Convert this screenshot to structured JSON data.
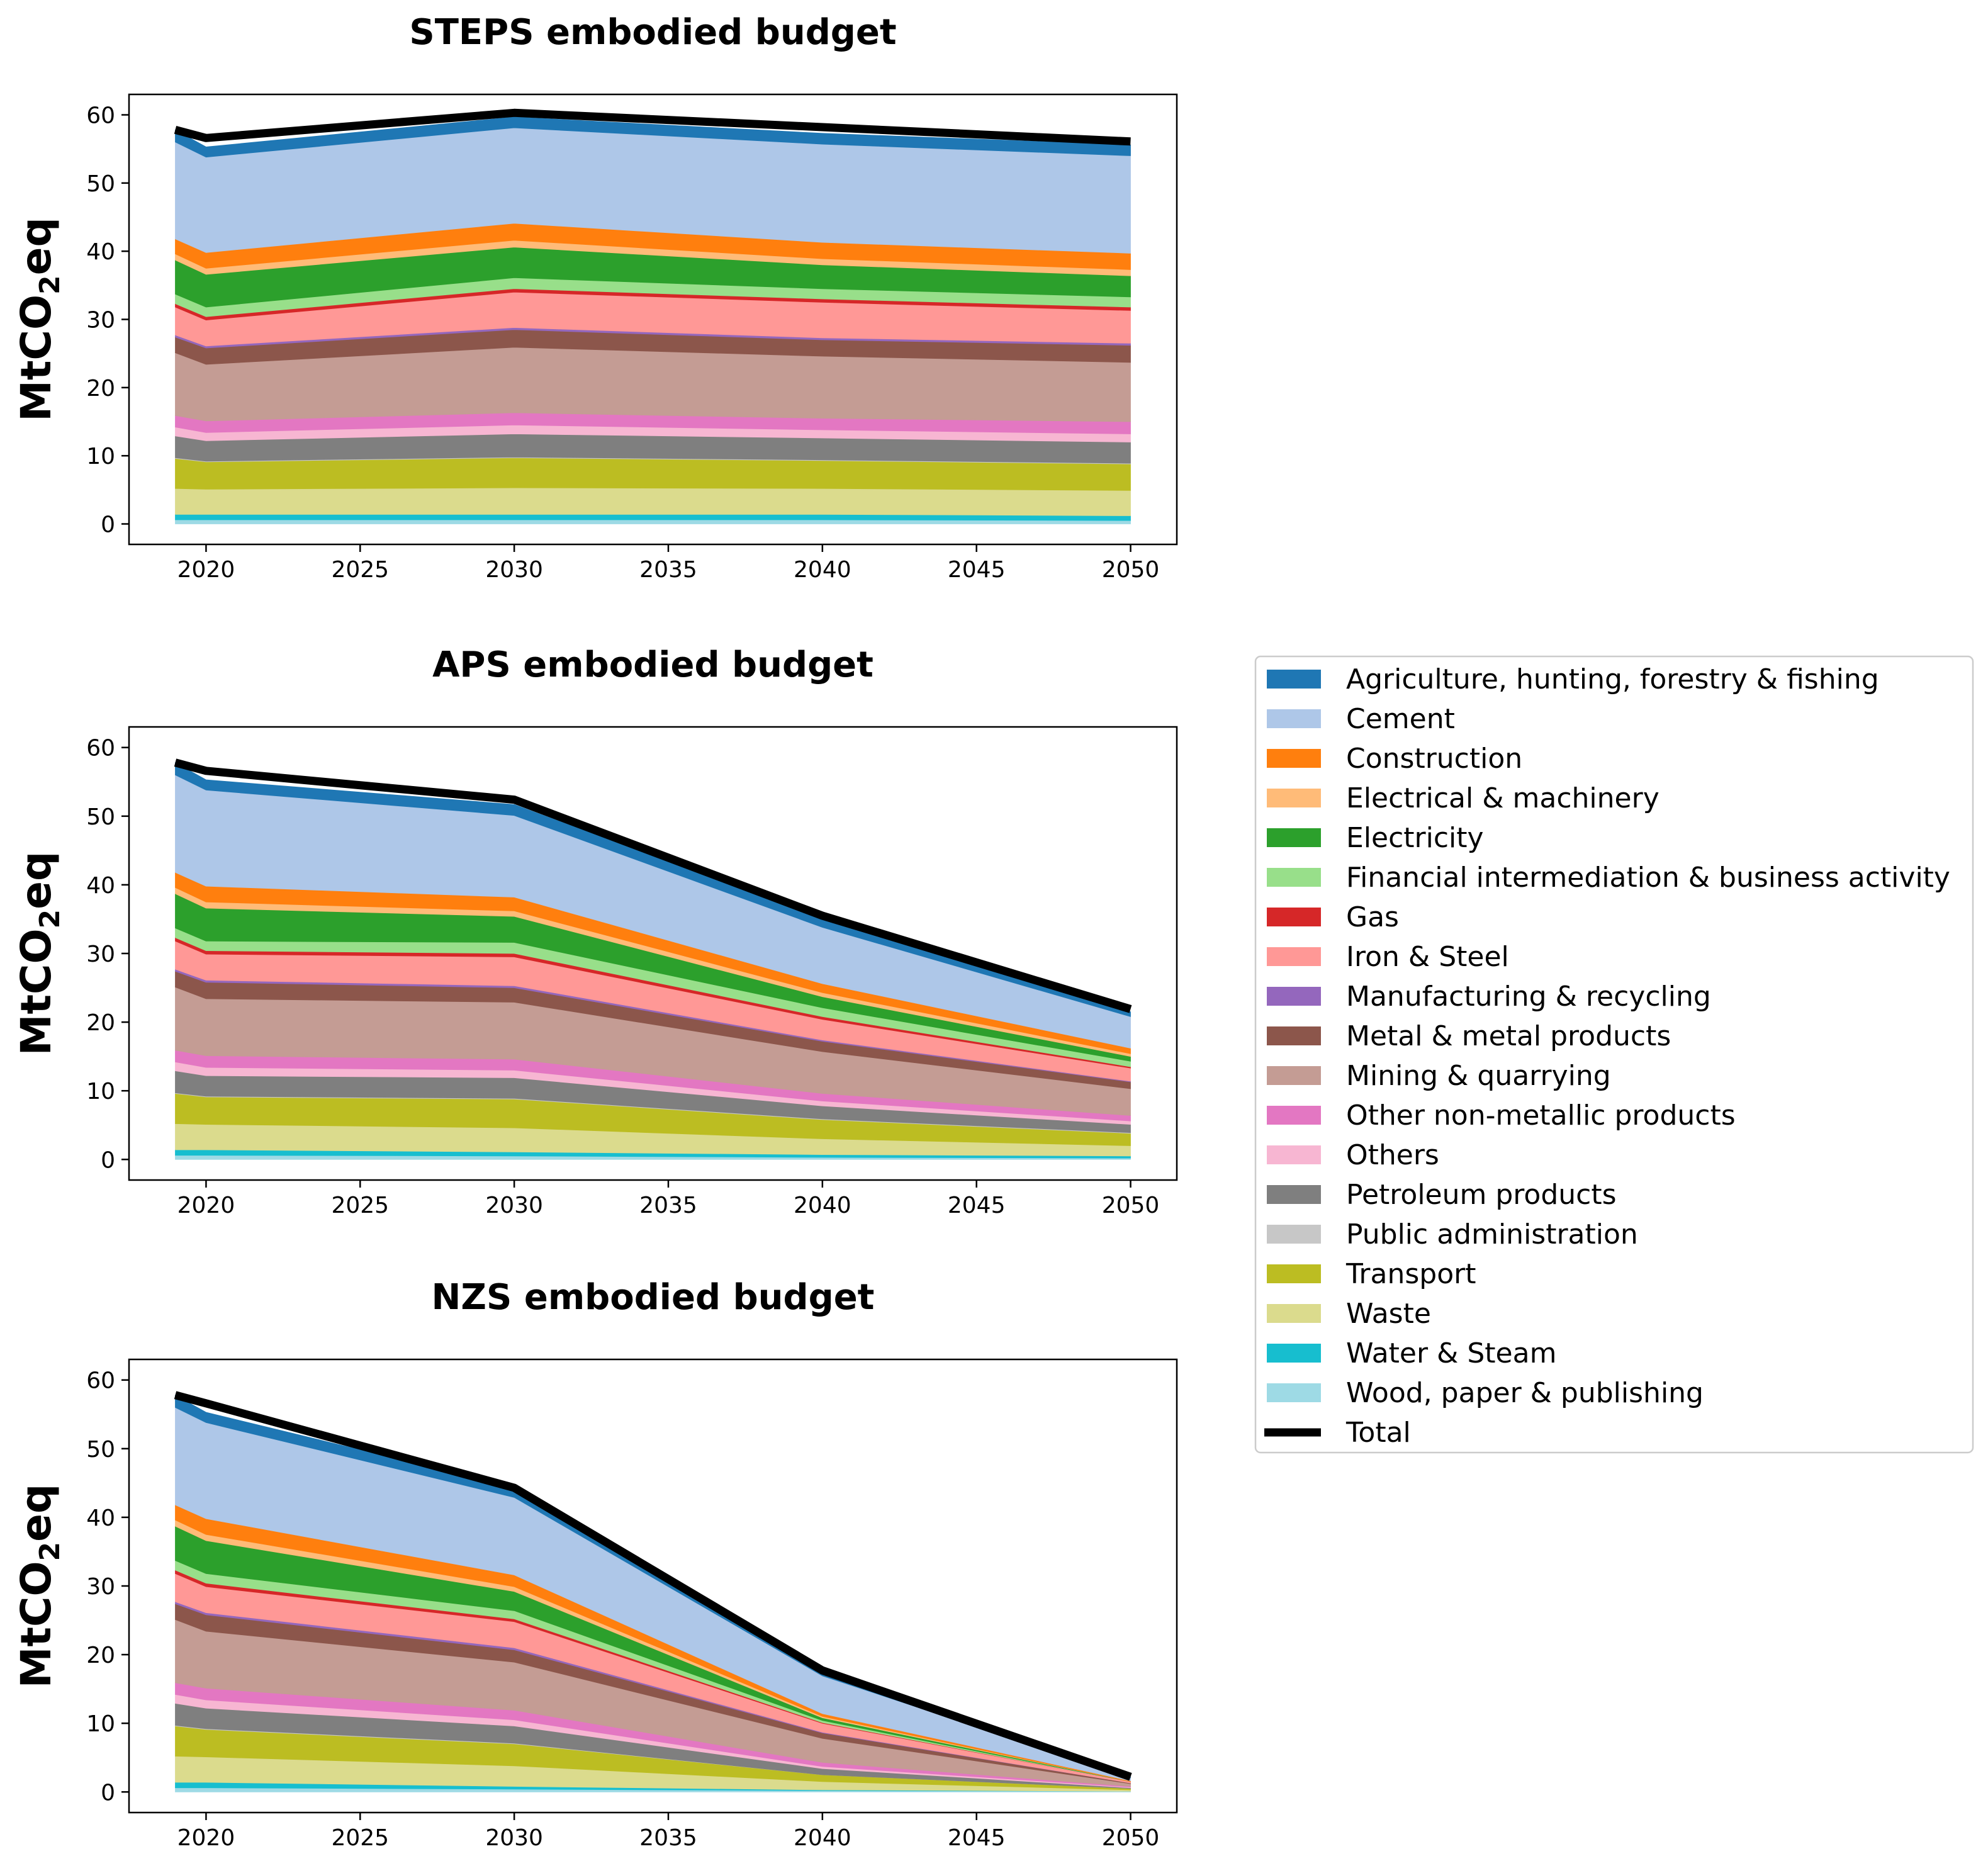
{
  "chart_data": {
    "type": "area",
    "x": [
      2019,
      2020,
      2030,
      2040,
      2050
    ],
    "xticks": [
      2020,
      2025,
      2030,
      2035,
      2040,
      2045,
      2050
    ],
    "yticks": [
      0,
      10,
      20,
      30,
      40,
      50,
      60
    ],
    "ylim": [
      -3,
      63
    ],
    "xlim": [
      2017.5,
      2051.5
    ],
    "ylabel_main": "MtCO",
    "ylabel_sub": "2",
    "ylabel_tail": "eq",
    "series_names": [
      "Agriculture, hunting, forestry & fishing",
      "Cement",
      "Construction",
      "Electrical & machinery",
      "Electricity",
      "Financial intermediation & business activity",
      "Gas",
      "Iron & Steel",
      "Manufacturing & recycling",
      "Metal & metal products",
      "Mining & quarrying",
      "Other non-metallic products",
      "Others",
      "Petroleum products",
      "Public administration",
      "Transport",
      "Waste",
      "Water & Steam",
      "Wood, paper & publishing",
      "Total"
    ],
    "colors": {
      "Agriculture, hunting, forestry & fishing": "#1f77b4",
      "Cement": "#aec7e8",
      "Construction": "#ff7f0e",
      "Electrical & machinery": "#ffbb78",
      "Electricity": "#2ca02c",
      "Financial intermediation & business activity": "#98df8a",
      "Gas": "#d62728",
      "Iron & Steel": "#ff9896",
      "Manufacturing & recycling": "#9467bd",
      "Metal & metal products": "#8c564b",
      "Mining & quarrying": "#c49c94",
      "Other non-metallic products": "#e377c2",
      "Others": "#f7b6d2",
      "Petroleum products": "#7f7f7f",
      "Public administration": "#c7c7c7",
      "Transport": "#bcbd22",
      "Waste": "#dbdb8d",
      "Water & Steam": "#17becf",
      "Wood, paper & publishing": "#9edae5",
      "Total": "#000000"
    },
    "panels": [
      {
        "title": "STEPS embodied budget",
        "stacks": [
          {
            "name": "Wood, paper & publishing",
            "values": [
              0.6,
              0.6,
              0.6,
              0.6,
              0.5
            ]
          },
          {
            "name": "Water & Steam",
            "values": [
              0.8,
              0.8,
              0.8,
              0.8,
              0.7
            ]
          },
          {
            "name": "Waste",
            "values": [
              3.8,
              3.7,
              3.9,
              3.8,
              3.7
            ]
          },
          {
            "name": "Transport",
            "values": [
              4.4,
              4.0,
              4.4,
              4.1,
              3.9
            ]
          },
          {
            "name": "Public administration",
            "values": [
              0.1,
              0.1,
              0.1,
              0.1,
              0.1
            ]
          },
          {
            "name": "Petroleum products",
            "values": [
              3.2,
              3.0,
              3.4,
              3.2,
              3.1
            ]
          },
          {
            "name": "Others",
            "values": [
              1.3,
              1.2,
              1.3,
              1.2,
              1.2
            ]
          },
          {
            "name": "Other non-metallic products",
            "values": [
              1.7,
              1.7,
              1.8,
              1.7,
              1.8
            ]
          },
          {
            "name": "Mining & quarrying",
            "values": [
              9.2,
              8.3,
              9.6,
              9.1,
              8.7
            ]
          },
          {
            "name": "Metal & metal products",
            "values": [
              2.3,
              2.4,
              2.6,
              2.4,
              2.5
            ]
          },
          {
            "name": "Manufacturing & recycling",
            "values": [
              0.3,
              0.3,
              0.3,
              0.3,
              0.3
            ]
          },
          {
            "name": "Iron & Steel",
            "values": [
              4.1,
              3.8,
              5.2,
              5.2,
              4.8
            ]
          },
          {
            "name": "Gas",
            "values": [
              0.5,
              0.5,
              0.5,
              0.5,
              0.5
            ]
          },
          {
            "name": "Financial intermediation & business activity",
            "values": [
              1.4,
              1.4,
              1.6,
              1.5,
              1.5
            ]
          },
          {
            "name": "Electricity",
            "values": [
              5.0,
              4.8,
              4.5,
              3.5,
              3.1
            ]
          },
          {
            "name": "Electrical & machinery",
            "values": [
              0.9,
              0.9,
              1.0,
              0.9,
              0.9
            ]
          },
          {
            "name": "Construction",
            "values": [
              2.2,
              2.3,
              2.5,
              2.4,
              2.4
            ]
          },
          {
            "name": "Cement",
            "values": [
              14.2,
              14.0,
              14.0,
              14.4,
              14.3
            ]
          },
          {
            "name": "Agriculture, hunting, forestry & fishing",
            "values": [
              1.8,
              1.5,
              1.6,
              1.6,
              1.6
            ]
          }
        ],
        "total": [
          57.8,
          56.6,
          60.3,
          58.2,
          56.1
        ]
      },
      {
        "title": "APS embodied budget",
        "stacks": [
          {
            "name": "Wood, paper & publishing",
            "values": [
              0.6,
              0.6,
              0.5,
              0.3,
              0.2
            ]
          },
          {
            "name": "Water & Steam",
            "values": [
              0.8,
              0.8,
              0.6,
              0.4,
              0.3
            ]
          },
          {
            "name": "Waste",
            "values": [
              3.8,
              3.7,
              3.5,
              2.3,
              1.5
            ]
          },
          {
            "name": "Transport",
            "values": [
              4.4,
              4.0,
              4.2,
              2.8,
              1.8
            ]
          },
          {
            "name": "Public administration",
            "values": [
              0.1,
              0.1,
              0.1,
              0.1,
              0.1
            ]
          },
          {
            "name": "Petroleum products",
            "values": [
              3.2,
              3.0,
              3.0,
              1.9,
              1.2
            ]
          },
          {
            "name": "Others",
            "values": [
              1.3,
              1.2,
              1.1,
              0.7,
              0.5
            ]
          },
          {
            "name": "Other non-metallic products",
            "values": [
              1.7,
              1.7,
              1.6,
              1.1,
              0.8
            ]
          },
          {
            "name": "Mining & quarrying",
            "values": [
              9.2,
              8.3,
              8.3,
              6.1,
              3.9
            ]
          },
          {
            "name": "Metal & metal products",
            "values": [
              2.3,
              2.4,
              2.1,
              1.5,
              1.0
            ]
          },
          {
            "name": "Manufacturing & recycling",
            "values": [
              0.3,
              0.3,
              0.3,
              0.2,
              0.1
            ]
          },
          {
            "name": "Iron & Steel",
            "values": [
              4.1,
              3.8,
              4.2,
              3.0,
              1.9
            ]
          },
          {
            "name": "Gas",
            "values": [
              0.5,
              0.5,
              0.5,
              0.4,
              0.2
            ]
          },
          {
            "name": "Financial intermediation & business activity",
            "values": [
              1.4,
              1.4,
              1.6,
              1.3,
              0.8
            ]
          },
          {
            "name": "Electricity",
            "values": [
              5.0,
              4.8,
              3.8,
              1.6,
              0.7
            ]
          },
          {
            "name": "Electrical & machinery",
            "values": [
              0.9,
              0.9,
              0.8,
              0.6,
              0.4
            ]
          },
          {
            "name": "Construction",
            "values": [
              2.2,
              2.3,
              2.0,
              1.3,
              0.8
            ]
          },
          {
            "name": "Cement",
            "values": [
              14.2,
              14.0,
              11.9,
              8.2,
              4.6
            ]
          },
          {
            "name": "Agriculture, hunting, forestry & fishing",
            "values": [
              1.8,
              1.5,
              1.6,
              1.3,
              0.7
            ]
          }
        ],
        "total": [
          57.8,
          56.6,
          52.4,
          35.5,
          21.9
        ]
      },
      {
        "title": "NZS embodied budget",
        "stacks": [
          {
            "name": "Wood, paper & publishing",
            "values": [
              0.6,
              0.6,
              0.4,
              0.2,
              0.1
            ]
          },
          {
            "name": "Water & Steam",
            "values": [
              0.8,
              0.8,
              0.4,
              0.1,
              0.0
            ]
          },
          {
            "name": "Waste",
            "values": [
              3.8,
              3.7,
              3.0,
              1.2,
              0.2
            ]
          },
          {
            "name": "Transport",
            "values": [
              4.4,
              4.0,
              3.2,
              1.0,
              0.2
            ]
          },
          {
            "name": "Public administration",
            "values": [
              0.1,
              0.1,
              0.1,
              0.0,
              0.0
            ]
          },
          {
            "name": "Petroleum products",
            "values": [
              3.2,
              3.0,
              2.5,
              0.9,
              0.1
            ]
          },
          {
            "name": "Others",
            "values": [
              1.3,
              1.2,
              0.9,
              0.3,
              0.1
            ]
          },
          {
            "name": "Other non-metallic products",
            "values": [
              1.7,
              1.7,
              1.4,
              0.6,
              0.1
            ]
          },
          {
            "name": "Mining & quarrying",
            "values": [
              9.2,
              8.3,
              7.0,
              3.5,
              0.4
            ]
          },
          {
            "name": "Metal & metal products",
            "values": [
              2.3,
              2.4,
              1.8,
              0.8,
              0.1
            ]
          },
          {
            "name": "Manufacturing & recycling",
            "values": [
              0.3,
              0.3,
              0.3,
              0.1,
              0.0
            ]
          },
          {
            "name": "Iron & Steel",
            "values": [
              4.1,
              3.8,
              3.8,
              1.3,
              0.2
            ]
          },
          {
            "name": "Gas",
            "values": [
              0.5,
              0.5,
              0.4,
              0.1,
              0.0
            ]
          },
          {
            "name": "Financial intermediation & business activity",
            "values": [
              1.4,
              1.4,
              1.2,
              0.3,
              0.0
            ]
          },
          {
            "name": "Electricity",
            "values": [
              5.0,
              4.8,
              2.8,
              0.4,
              0.0
            ]
          },
          {
            "name": "Electrical & machinery",
            "values": [
              0.9,
              0.9,
              0.7,
              0.2,
              0.0
            ]
          },
          {
            "name": "Construction",
            "values": [
              2.2,
              2.3,
              1.7,
              0.4,
              0.1
            ]
          },
          {
            "name": "Cement",
            "values": [
              14.2,
              14.0,
              11.3,
              5.5,
              0.5
            ]
          },
          {
            "name": "Agriculture, hunting, forestry & fishing",
            "values": [
              1.8,
              1.5,
              1.5,
              0.6,
              0.1
            ]
          }
        ],
        "total": [
          57.8,
          56.6,
          44.3,
          17.7,
          2.2
        ]
      }
    ]
  }
}
